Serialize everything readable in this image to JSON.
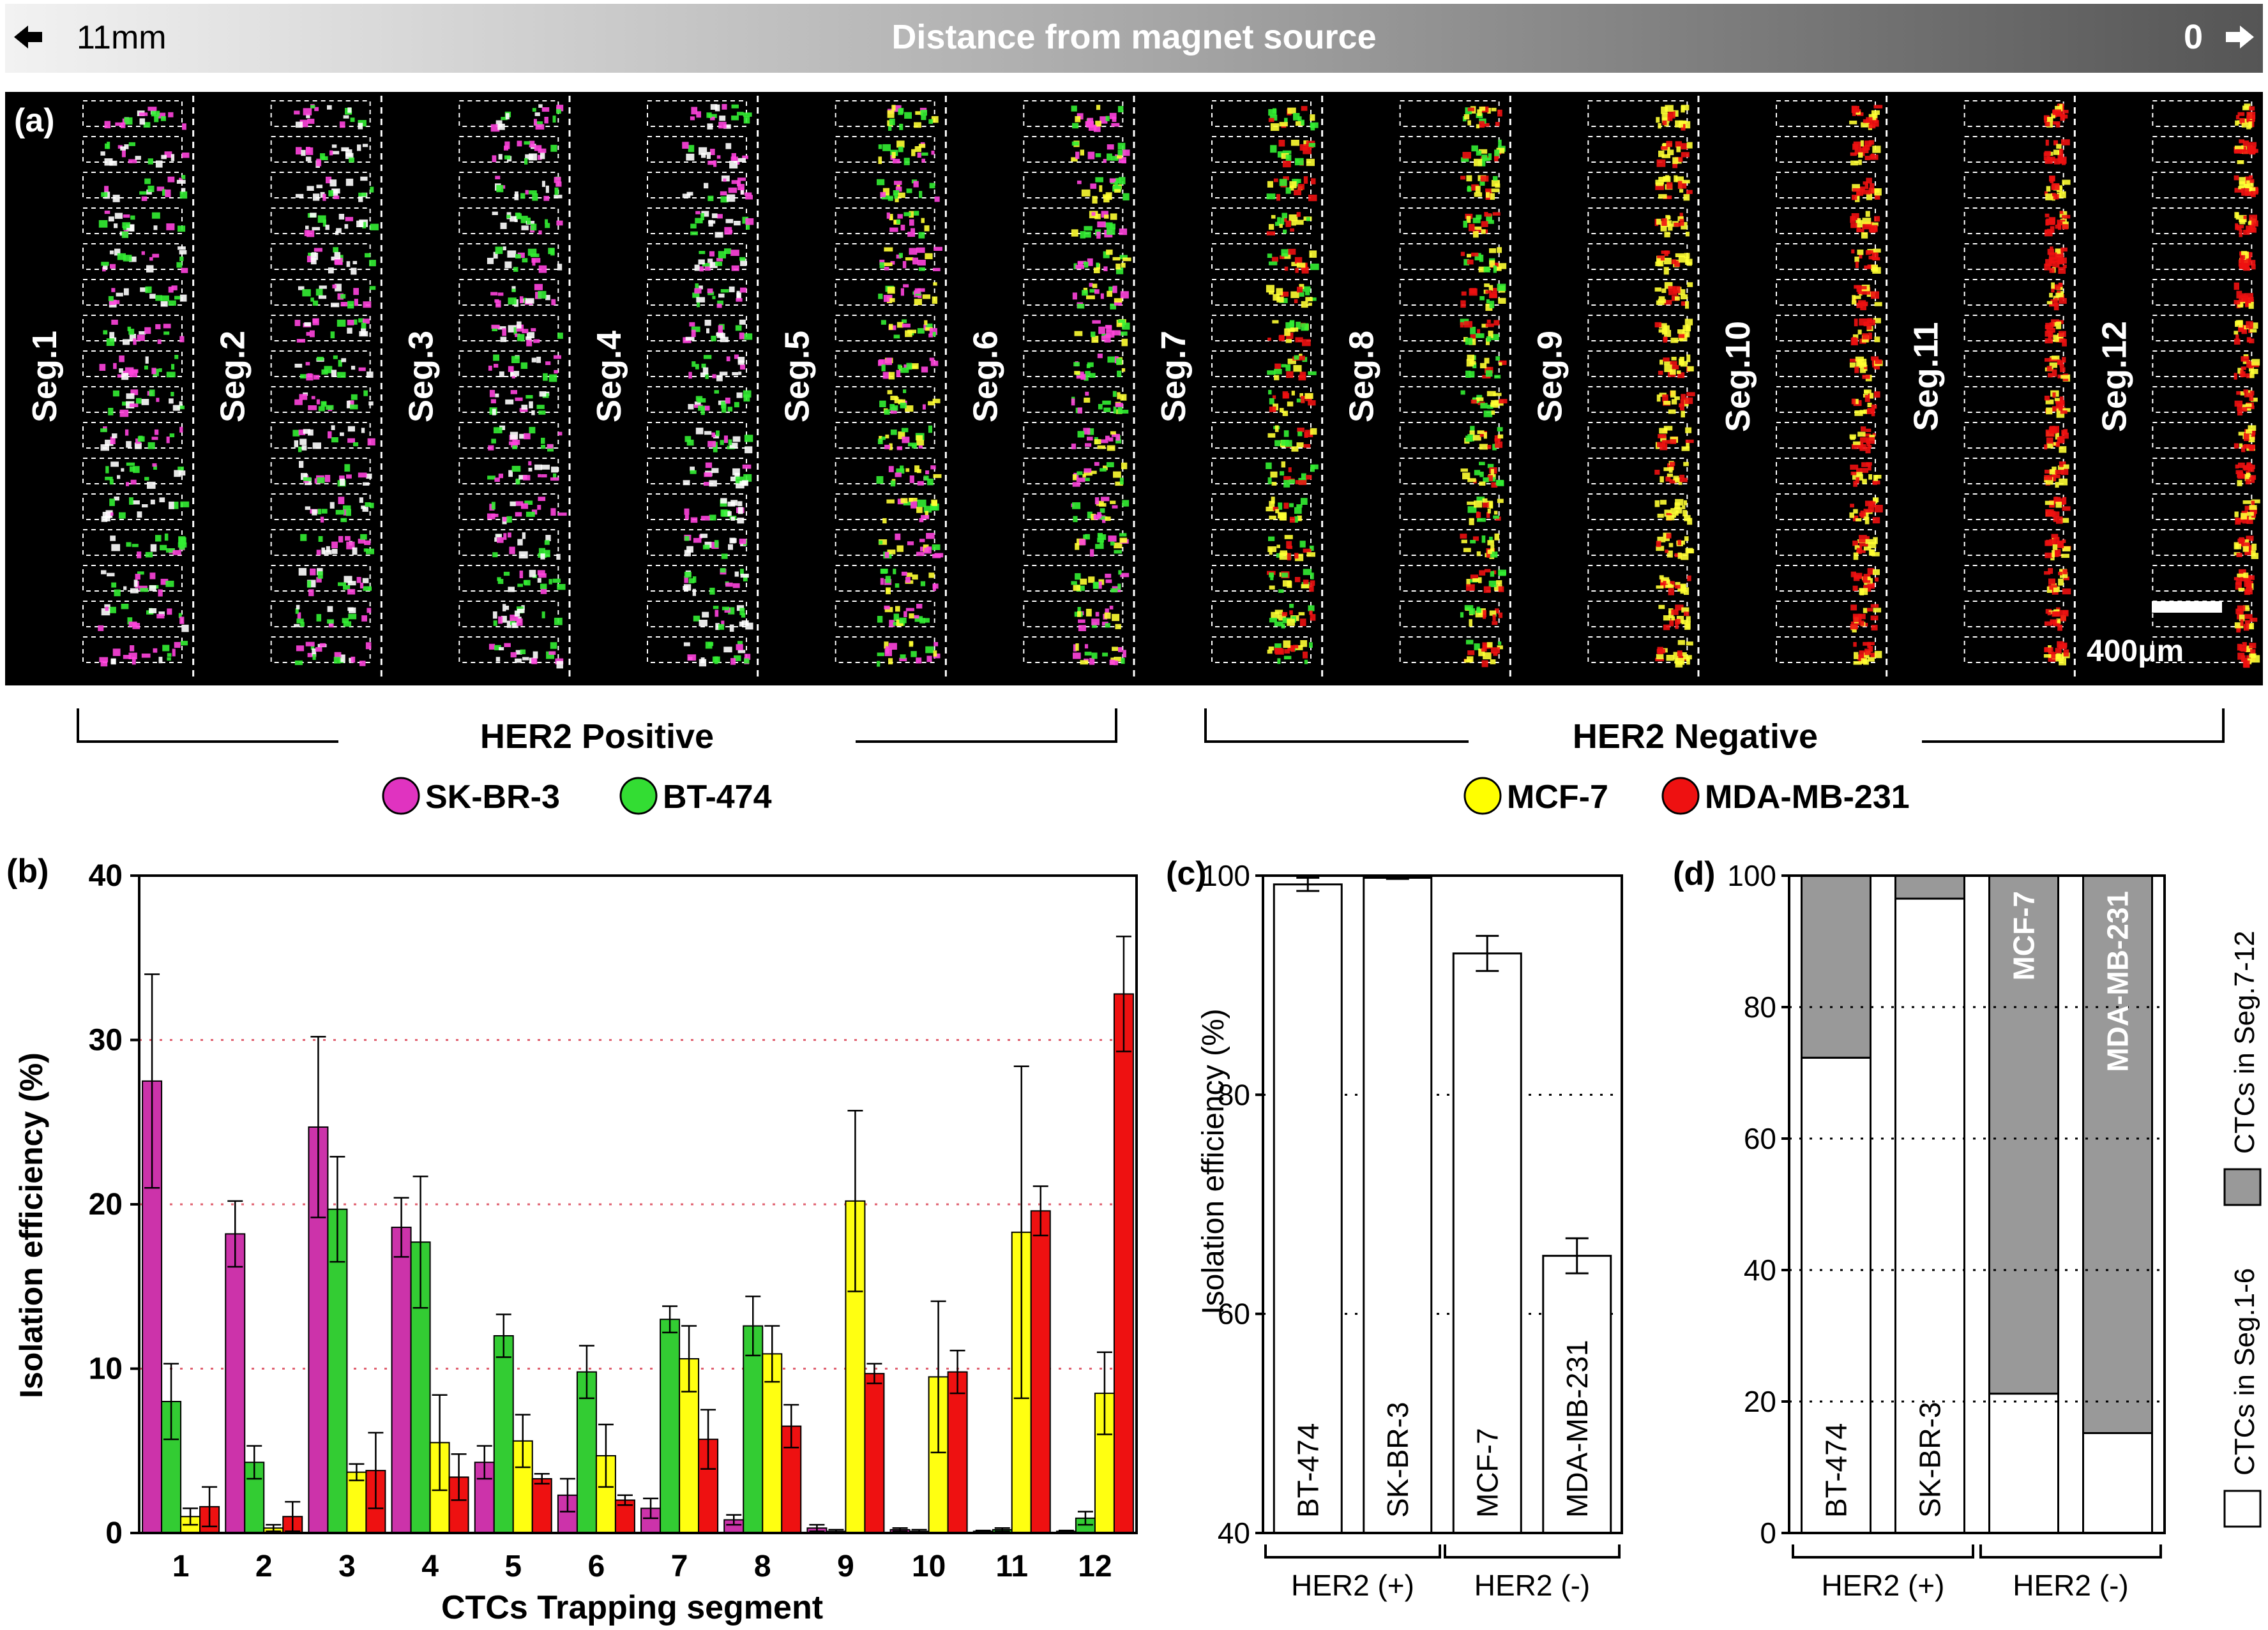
{
  "banner": {
    "left_label": "11mm",
    "center_label": "Distance from magnet source",
    "right_label": "0"
  },
  "panel_a": {
    "label": "(a)",
    "segments": [
      "Seg.1",
      "Seg.2",
      "Seg.3",
      "Seg.4",
      "Seg.5",
      "Seg.6",
      "Seg.7",
      "Seg.8",
      "Seg.9",
      "Seg.10",
      "Seg.11",
      "Seg.12"
    ],
    "scale_bar": "400μm",
    "groups": {
      "positive": "HER2 Positive",
      "negative": "HER2 Negative"
    },
    "legend": [
      {
        "name": "SK-BR-3",
        "color": "#e033c0"
      },
      {
        "name": "BT-474",
        "color": "#33dd33"
      },
      {
        "name": "MCF-7",
        "color": "#ffff00"
      },
      {
        "name": "MDA-MB-231",
        "color": "#ee1111"
      }
    ]
  },
  "colors": {
    "skbr3": "#cc33aa",
    "bt474": "#33cc33",
    "mcf7": "#ffff11",
    "mda": "#ee1111",
    "gray": "#999999"
  },
  "chart_data": [
    {
      "id": "b",
      "label": "(b)",
      "type": "bar",
      "xlabel": "CTCs Trapping segment",
      "ylabel": "Isolation efficiency (%)",
      "ylim": [
        0,
        40
      ],
      "yticks": [
        0,
        10,
        20,
        30,
        40
      ],
      "grid": [
        10,
        20,
        30
      ],
      "categories": [
        "1",
        "2",
        "3",
        "4",
        "5",
        "6",
        "7",
        "8",
        "9",
        "10",
        "11",
        "12"
      ],
      "series": [
        {
          "name": "SK-BR-3",
          "values": [
            27.5,
            18.2,
            24.7,
            18.6,
            4.3,
            2.3,
            1.5,
            0.8,
            0.3,
            0.2,
            0.1,
            0.1
          ],
          "errors": [
            6.5,
            2.0,
            5.5,
            1.8,
            1.0,
            1.0,
            0.6,
            0.3,
            0.2,
            0.1,
            0.05,
            0.05
          ]
        },
        {
          "name": "BT-474",
          "values": [
            8.0,
            4.3,
            19.7,
            17.7,
            12.0,
            9.8,
            13.0,
            12.6,
            0.1,
            0.1,
            0.2,
            0.9
          ],
          "errors": [
            2.3,
            1.0,
            3.2,
            4.0,
            1.3,
            1.6,
            0.8,
            1.8,
            0.1,
            0.1,
            0.1,
            0.4
          ]
        },
        {
          "name": "MCF-7",
          "values": [
            1.0,
            0.3,
            3.7,
            5.5,
            5.6,
            4.7,
            10.6,
            10.9,
            20.2,
            9.5,
            18.3,
            8.5
          ],
          "errors": [
            0.5,
            0.2,
            0.5,
            2.9,
            1.6,
            1.9,
            2.0,
            1.7,
            5.5,
            4.6,
            10.1,
            2.5
          ]
        },
        {
          "name": "MDA-MB-231",
          "values": [
            1.6,
            1.0,
            3.8,
            3.4,
            3.3,
            2.0,
            5.7,
            6.5,
            9.7,
            9.8,
            19.6,
            32.8
          ],
          "errors": [
            1.2,
            0.9,
            2.3,
            1.4,
            0.3,
            0.3,
            1.8,
            1.3,
            0.6,
            1.3,
            1.5,
            3.5
          ]
        }
      ]
    },
    {
      "id": "c",
      "label": "(c)",
      "type": "bar",
      "ylabel": "Isolation efficiency (%)",
      "ylim": [
        40,
        100
      ],
      "yticks": [
        40,
        60,
        80,
        100
      ],
      "grid": [
        60,
        80
      ],
      "categories": [
        "BT-474",
        "SK-BR-3",
        "MCF-7",
        "MDA-MB-231"
      ],
      "values": [
        99.2,
        99.8,
        92.9,
        65.3
      ],
      "errors": [
        0.6,
        0.1,
        1.6,
        1.6
      ],
      "groups": [
        {
          "label": "HER2 (+)",
          "span": [
            0,
            1
          ]
        },
        {
          "label": "HER2 (-)",
          "span": [
            2,
            3
          ]
        }
      ]
    },
    {
      "id": "d",
      "label": "(d)",
      "type": "bar",
      "stacked": true,
      "ylim": [
        0,
        100
      ],
      "yticks": [
        0,
        20,
        40,
        60,
        80,
        100
      ],
      "grid": [
        20,
        40,
        60,
        80
      ],
      "categories": [
        "BT-474",
        "SK-BR-3",
        "MCF-7",
        "MDA-MB-231"
      ],
      "series": [
        {
          "name": "CTCs in Seg.1-6",
          "values": [
            72.3,
            96.5,
            21.2,
            15.2
          ]
        },
        {
          "name": "CTCs in Seg.7-12",
          "values": [
            27.7,
            3.5,
            78.8,
            84.8
          ]
        }
      ],
      "groups": [
        {
          "label": "HER2 (+)",
          "span": [
            0,
            1
          ]
        },
        {
          "label": "HER2 (-)",
          "span": [
            2,
            3
          ]
        }
      ]
    }
  ]
}
